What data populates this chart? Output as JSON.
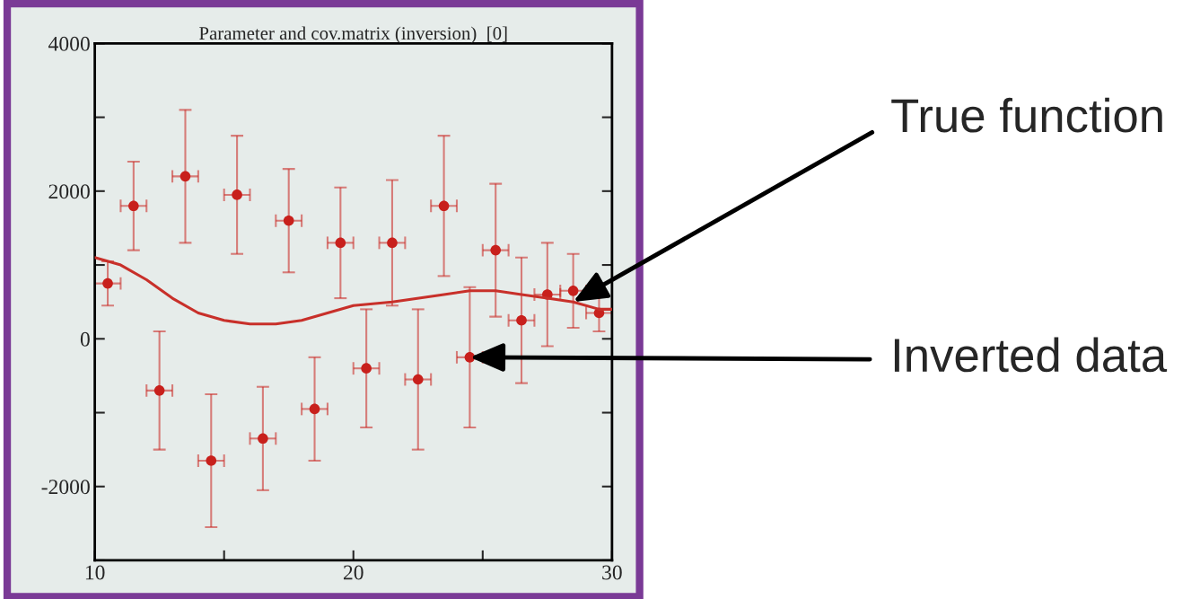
{
  "chart_data": {
    "type": "scatter",
    "title": "Parameter and cov.matrix (inversion)  [0]",
    "series": [
      {
        "color": "#c8201c",
        "marker": "circle",
        "x": [
          10.5,
          11.5,
          12.5,
          13.5,
          14.5,
          15.5,
          16.5,
          17.5,
          18.5,
          19.5,
          20.5,
          21.5,
          22.5,
          23.5,
          24.5,
          25.5,
          26.5,
          27.5,
          28.5,
          29.5
        ],
        "values": [
          750,
          1800,
          -700,
          2200,
          -1650,
          1950,
          -1350,
          1600,
          -950,
          1300,
          -400,
          1300,
          -550,
          1800,
          -250,
          1200,
          250,
          600,
          650,
          350
        ],
        "errors": [
          300,
          600,
          800,
          900,
          900,
          800,
          700,
          700,
          700,
          750,
          800,
          850,
          950,
          950,
          950,
          900,
          850,
          700,
          500,
          250
        ],
        "xerrors": [
          0.5,
          0.5,
          0.5,
          0.5,
          0.5,
          0.5,
          0.5,
          0.5,
          0.5,
          0.5,
          0.5,
          0.5,
          0.5,
          0.5,
          0.5,
          0.5,
          0.5,
          0.5,
          0.5,
          0.5
        ]
      },
      {
        "type": "line",
        "color": "#c8302a",
        "marker": "none",
        "line_style": "solid",
        "x": [
          10,
          11,
          12,
          13,
          14,
          15,
          16,
          16.5,
          17,
          18,
          19,
          20,
          21.5,
          23.5,
          24.5,
          25.5,
          26.5,
          27.5,
          28.5,
          29.5,
          30
        ],
        "values": [
          1100,
          1000,
          800,
          550,
          350,
          250,
          200,
          200,
          200,
          250,
          350,
          450,
          500,
          600,
          650,
          650,
          600,
          550,
          500,
          400,
          400
        ]
      }
    ],
    "xlim": [
      10,
      30
    ],
    "xticks": [
      10,
      {
        "value": 15,
        "label": null
      },
      20,
      {
        "value": 25,
        "label": null
      },
      30
    ],
    "ylim": [
      -3000,
      4000
    ],
    "yticks": [
      {
        "value": -3000,
        "label": null
      },
      -2000,
      {
        "value": -1000,
        "label": null
      },
      0,
      {
        "value": 1000,
        "label": null
      },
      2000,
      {
        "value": 3000,
        "label": null
      },
      4000
    ],
    "grid": false,
    "legend": false,
    "annotations": [
      {
        "text": "True function",
        "x": 28.5,
        "y": 500
      },
      {
        "text": "Inverted data",
        "x": 24.5,
        "y": -250
      }
    ]
  }
}
